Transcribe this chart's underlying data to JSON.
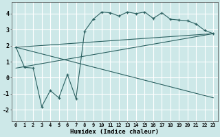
{
  "xlabel": "Humidex (Indice chaleur)",
  "bg_color": "#cde8e8",
  "grid_color": "#b0d8d8",
  "line_color": "#2a6060",
  "xlim": [
    -0.5,
    23.5
  ],
  "ylim": [
    -2.7,
    4.7
  ],
  "xticks": [
    0,
    1,
    2,
    3,
    4,
    5,
    6,
    7,
    8,
    9,
    10,
    11,
    12,
    13,
    14,
    15,
    16,
    17,
    18,
    19,
    20,
    21,
    22,
    23
  ],
  "yticks": [
    -2,
    -1,
    0,
    1,
    2,
    3,
    4
  ],
  "series1_x": [
    0,
    1,
    2,
    3,
    4,
    5,
    6,
    7,
    8,
    9,
    10,
    11,
    12,
    13,
    14,
    15,
    16,
    17,
    18,
    19,
    20,
    21,
    22,
    23
  ],
  "series1_y": [
    1.9,
    0.65,
    0.6,
    -1.8,
    -0.8,
    -1.25,
    0.2,
    -1.3,
    2.9,
    3.65,
    4.1,
    4.05,
    3.85,
    4.1,
    4.0,
    4.1,
    3.7,
    4.05,
    3.65,
    3.6,
    3.55,
    3.35,
    2.95,
    2.75
  ],
  "line1_x": [
    0,
    23
  ],
  "line1_y": [
    1.9,
    2.75
  ],
  "line2_x": [
    0,
    23
  ],
  "line2_y": [
    0.6,
    2.75
  ],
  "line3_x": [
    0,
    23
  ],
  "line3_y": [
    1.9,
    -1.25
  ]
}
